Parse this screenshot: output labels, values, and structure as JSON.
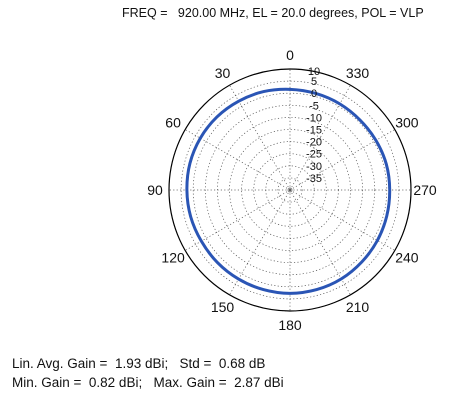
{
  "header": {
    "text": "FREQ =   920.00 MHz, EL = 20.0 degrees, POL = VLP"
  },
  "stats": {
    "line1": "Lin. Avg. Gain =  1.93 dBi;   Std =  0.68 dB",
    "line2": "Min. Gain =  0.82 dBi;   Max. Gain =  2.87 dBi"
  },
  "chart_data": {
    "type": "polar",
    "angle_direction": "counterclockwise",
    "zero_angle_position": "top",
    "angle_ticks": [
      "0",
      "30",
      "60",
      "90",
      "120",
      "150",
      "180",
      "210",
      "240",
      "270",
      "300",
      "330"
    ],
    "radial_ticks": [
      "10",
      "5",
      "0",
      "-5",
      "-10",
      "-15",
      "-20",
      "-25",
      "-30",
      "-35"
    ],
    "radial_range": [
      -40,
      10
    ],
    "grid": true,
    "colors": {
      "series": "#2a55b5",
      "grid": "#555555",
      "frame": "#000000"
    },
    "series": [
      {
        "angles_deg": [
          0,
          15,
          30,
          45,
          60,
          75,
          90,
          105,
          120,
          135,
          150,
          165,
          180,
          195,
          210,
          225,
          240,
          255,
          270,
          285,
          300,
          315,
          330,
          345,
          360
        ],
        "gain_dbi": [
          1.6,
          2.1,
          2.4,
          2.7,
          2.8,
          2.8,
          2.6,
          2.5,
          2.3,
          2.4,
          2.5,
          2.6,
          2.7,
          2.6,
          2.4,
          2.0,
          1.7,
          1.4,
          1.2,
          1.2,
          1.0,
          0.9,
          1.1,
          1.3,
          1.6
        ]
      }
    ]
  }
}
